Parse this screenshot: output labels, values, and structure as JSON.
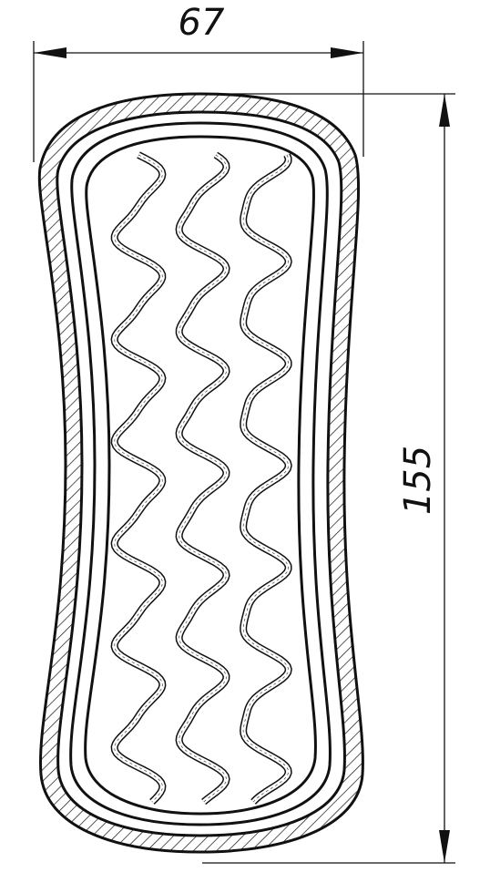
{
  "drawing": {
    "dimensions": {
      "width_value": "67",
      "height_value": "155"
    },
    "wave_columns": 3,
    "colors": {
      "line": "#111111",
      "background": "#ffffff"
    }
  }
}
